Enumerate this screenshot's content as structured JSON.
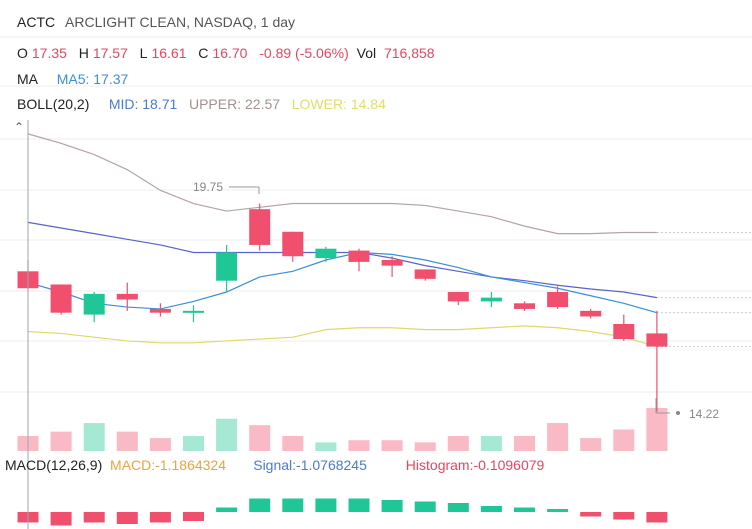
{
  "header": {
    "symbol": "ACTC",
    "name": "ARCLIGHT CLEAN, NASDAQ, 1 day"
  },
  "ohlc": {
    "o_label": "O",
    "o_value": "17.35",
    "h_label": "H",
    "h_value": "17.57",
    "l_label": "L",
    "l_value": "16.61",
    "c_label": "C",
    "c_value": "16.70",
    "change": "-0.89 (-5.06%)",
    "vol_label": "Vol",
    "vol_value": "716,858"
  },
  "ma": {
    "label": "MA",
    "ma5": "MA5: 17.37"
  },
  "boll": {
    "label": "BOLL(20,2)",
    "mid": "MID: 18.71",
    "upper": "UPPER: 22.57",
    "lower": "LOWER: 14.84"
  },
  "annotations": {
    "high_marker": "19.75",
    "low_marker": "14.22"
  },
  "macd": {
    "label": "MACD(12,26,9)",
    "macd": "MACD:-1.1864324",
    "signal": "Signal:-1.0768245",
    "histogram": "Histogram:-0.1096079"
  },
  "colors": {
    "up": "#1fc796",
    "down": "#f0506e",
    "ma5": "#3b8fd6",
    "boll_mid": "#5a63c8",
    "boll_upper": "#b5a3a3",
    "boll_lower": "#e0d86a"
  },
  "chart_data": {
    "type": "candlestick",
    "candles": [
      {
        "o": 17.95,
        "h": 18.25,
        "l": 17.45,
        "c": 17.5,
        "v": 0.35
      },
      {
        "o": 17.6,
        "h": 17.6,
        "l": 16.8,
        "c": 16.85,
        "v": 0.45
      },
      {
        "o": 16.8,
        "h": 17.4,
        "l": 16.6,
        "c": 17.35,
        "v": 0.65
      },
      {
        "o": 17.35,
        "h": 17.65,
        "l": 16.9,
        "c": 17.2,
        "v": 0.45
      },
      {
        "o": 16.95,
        "h": 17.1,
        "l": 16.75,
        "c": 16.85,
        "v": 0.3
      },
      {
        "o": 16.85,
        "h": 17.05,
        "l": 16.6,
        "c": 16.9,
        "v": 0.35
      },
      {
        "o": 17.7,
        "h": 18.65,
        "l": 17.4,
        "c": 18.45,
        "v": 0.75
      },
      {
        "o": 19.6,
        "h": 19.75,
        "l": 18.5,
        "c": 18.65,
        "v": 0.6
      },
      {
        "o": 19.0,
        "h": 19.0,
        "l": 18.2,
        "c": 18.35,
        "v": 0.35
      },
      {
        "o": 18.3,
        "h": 18.6,
        "l": 18.2,
        "c": 18.55,
        "v": 0.2
      },
      {
        "o": 18.5,
        "h": 18.55,
        "l": 17.95,
        "c": 18.2,
        "v": 0.25
      },
      {
        "o": 18.25,
        "h": 18.35,
        "l": 17.8,
        "c": 18.1,
        "v": 0.25
      },
      {
        "o": 18.0,
        "h": 18.0,
        "l": 17.7,
        "c": 17.75,
        "v": 0.2
      },
      {
        "o": 17.4,
        "h": 17.4,
        "l": 17.05,
        "c": 17.15,
        "v": 0.35
      },
      {
        "o": 17.15,
        "h": 17.4,
        "l": 17.0,
        "c": 17.25,
        "v": 0.35
      },
      {
        "o": 17.1,
        "h": 17.15,
        "l": 16.9,
        "c": 16.95,
        "v": 0.35
      },
      {
        "o": 17.4,
        "h": 17.55,
        "l": 16.95,
        "c": 17.0,
        "v": 0.65
      },
      {
        "o": 16.9,
        "h": 16.95,
        "l": 16.7,
        "c": 16.75,
        "v": 0.3
      },
      {
        "o": 16.55,
        "h": 16.8,
        "l": 16.1,
        "c": 16.15,
        "v": 0.5
      },
      {
        "o": 16.3,
        "h": 16.9,
        "l": 14.22,
        "c": 15.95,
        "v": 1.0
      }
    ],
    "ma5": [
      17.65,
      17.4,
      17.1,
      17.0,
      16.95,
      17.15,
      17.4,
      17.8,
      17.95,
      18.25,
      18.45,
      18.4,
      18.25,
      18.05,
      17.8,
      17.65,
      17.5,
      17.3,
      17.1,
      16.85
    ],
    "boll_upper": [
      21.6,
      21.35,
      21.05,
      20.65,
      20.1,
      19.75,
      19.55,
      19.65,
      19.75,
      19.75,
      19.75,
      19.75,
      19.7,
      19.55,
      19.4,
      19.15,
      18.95,
      18.95,
      18.98,
      18.98
    ],
    "boll_mid": [
      19.25,
      19.1,
      18.95,
      18.8,
      18.65,
      18.45,
      18.45,
      18.45,
      18.45,
      18.45,
      18.45,
      18.3,
      18.1,
      17.95,
      17.8,
      17.7,
      17.58,
      17.48,
      17.4,
      17.25
    ],
    "boll_lower": [
      16.35,
      16.3,
      16.2,
      16.1,
      16.05,
      16.05,
      16.1,
      16.15,
      16.2,
      16.4,
      16.45,
      16.45,
      16.4,
      16.4,
      16.45,
      16.5,
      16.45,
      16.35,
      16.2,
      15.95
    ],
    "macd_hist": [
      -0.35,
      -0.45,
      -0.35,
      -0.4,
      -0.35,
      -0.3,
      0.15,
      0.45,
      0.45,
      0.45,
      0.45,
      0.4,
      0.35,
      0.3,
      0.2,
      0.15,
      0.1,
      -0.15,
      -0.25,
      -0.35
    ]
  }
}
